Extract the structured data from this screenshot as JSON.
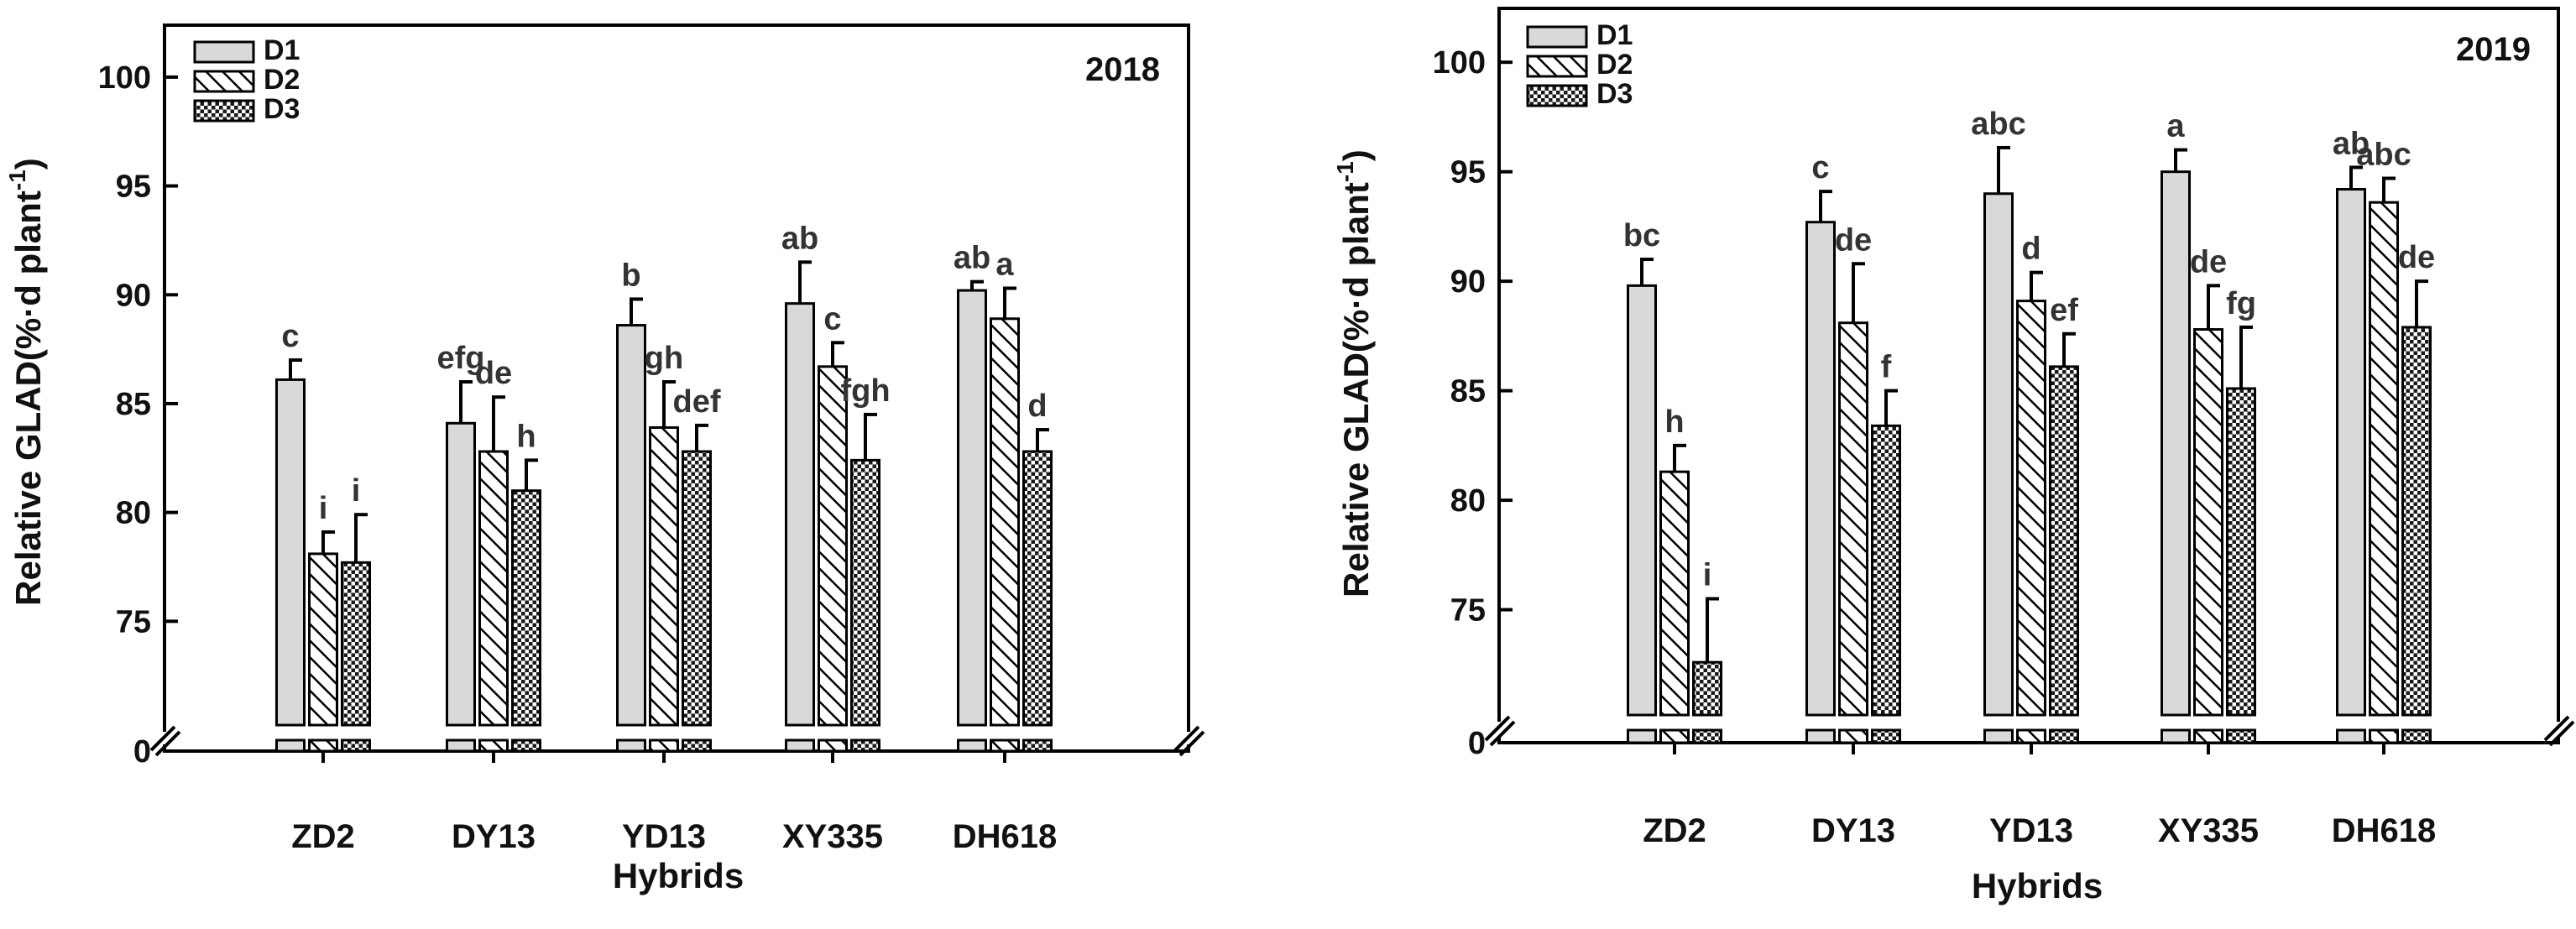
{
  "figure": {
    "background": "#ffffff",
    "axis_color": "#000000",
    "label_color": "#111111",
    "letter_color": "#333333"
  },
  "chart_data": [
    {
      "type": "bar",
      "year_label": "2018",
      "xlabel": "Hybrids",
      "ylabel_main": "Relative GLAD(%·d plant",
      "ylabel_sup": "-1",
      "ylabel_close": ")",
      "categories": [
        "ZD2",
        "DY13",
        "YD13",
        "XY335",
        "DH618"
      ],
      "ylim": [
        70,
        102
      ],
      "broken_axis": true,
      "y_break_label": "0",
      "yticks": [
        75,
        80,
        85,
        90,
        95,
        100
      ],
      "legend": [
        "D1",
        "D2",
        "D3"
      ],
      "legend_position": "top-left",
      "series": [
        {
          "name": "D1",
          "pattern": "solid",
          "values": [
            86.1,
            84.1,
            88.6,
            89.6,
            90.2
          ],
          "errors": [
            0.9,
            1.9,
            1.2,
            1.9,
            0.4
          ],
          "letters": [
            "c",
            "efg",
            "b",
            "ab",
            "ab"
          ]
        },
        {
          "name": "D2",
          "pattern": "hatch",
          "values": [
            78.1,
            82.8,
            83.9,
            86.7,
            88.9
          ],
          "errors": [
            1.0,
            2.5,
            2.1,
            1.1,
            1.4
          ],
          "letters": [
            "i",
            "de",
            "gh",
            "c",
            "a"
          ]
        },
        {
          "name": "D3",
          "pattern": "cross",
          "values": [
            77.7,
            81.0,
            82.8,
            82.4,
            82.8
          ],
          "errors": [
            2.2,
            1.4,
            1.2,
            2.1,
            1.0
          ],
          "letters": [
            "i",
            "h",
            "def",
            "fgh",
            "d"
          ]
        }
      ]
    },
    {
      "type": "bar",
      "year_label": "2019",
      "xlabel": "Hybrids",
      "ylabel_main": "Relative GLAD(%·d plant",
      "ylabel_sup": "-1",
      "ylabel_close": ")",
      "categories": [
        "ZD2",
        "DY13",
        "YD13",
        "XY335",
        "DH618"
      ],
      "ylim": [
        70,
        102
      ],
      "broken_axis": true,
      "y_break_label": "0",
      "yticks": [
        75,
        80,
        85,
        90,
        95,
        100
      ],
      "legend": [
        "D1",
        "D2",
        "D3"
      ],
      "legend_position": "top-left",
      "series": [
        {
          "name": "D1",
          "pattern": "solid",
          "values": [
            89.8,
            92.7,
            94.0,
            95.0,
            94.2
          ],
          "errors": [
            1.2,
            1.4,
            2.1,
            1.0,
            1.0
          ],
          "letters": [
            "bc",
            "c",
            "abc",
            "a",
            "ab"
          ]
        },
        {
          "name": "D2",
          "pattern": "hatch",
          "values": [
            81.3,
            88.1,
            89.1,
            87.8,
            93.6
          ],
          "errors": [
            1.2,
            2.7,
            1.3,
            2.0,
            1.1
          ],
          "letters": [
            "h",
            "de",
            "d",
            "de",
            "abc"
          ]
        },
        {
          "name": "D3",
          "pattern": "cross",
          "values": [
            72.6,
            83.4,
            86.1,
            85.1,
            87.9
          ],
          "errors": [
            2.9,
            1.6,
            1.5,
            2.8,
            2.1
          ],
          "letters": [
            "i",
            "f",
            "ef",
            "fg",
            "de"
          ]
        }
      ]
    }
  ]
}
